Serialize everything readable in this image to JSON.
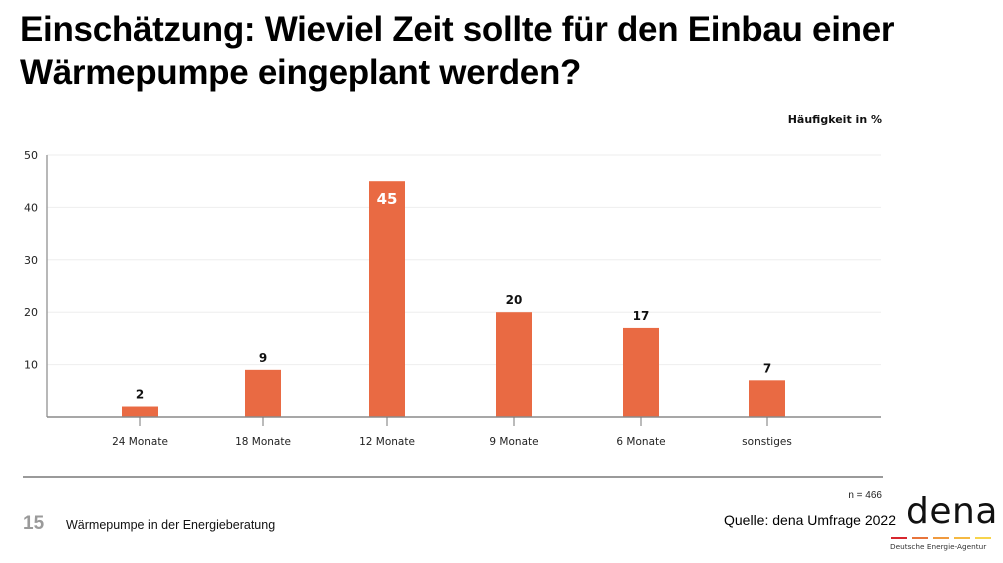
{
  "slide": {
    "title": "Einschätzung: Wieviel Zeit sollte für den Einbau einer Wärmepumpe eingeplant werden?",
    "page_number": "15",
    "footer_text": "Wärmepumpe in der Energieberatung",
    "sample_size": "n = 466",
    "source": "Quelle: dena Umfrage 2022",
    "logo": {
      "word": "dena",
      "subtitle": "Deutsche Energie-Agentur",
      "stripe_colors": [
        "#d7262e",
        "#e8743b",
        "#f09a3e",
        "#f5b942",
        "#f7d44c"
      ]
    }
  },
  "chart_data": {
    "type": "bar",
    "title": "Einschätzung: Wieviel Zeit sollte für den Einbau einer Wärmepumpe eingeplant werden?",
    "xlabel": "",
    "ylabel": "Häufigkeit in %",
    "categories": [
      "24 Monate",
      "18 Monate",
      "12 Monate",
      "9 Monate",
      "6 Monate",
      "sonstiges"
    ],
    "values": [
      2,
      9,
      45,
      20,
      17,
      7
    ],
    "data_labels": [
      "2",
      "9",
      "45",
      "20",
      "17",
      "7"
    ],
    "highlight_index": 2,
    "ylim": [
      0,
      50
    ],
    "yticks": [
      10,
      20,
      30,
      40,
      50
    ],
    "ytick_labels": [
      "10",
      "20",
      "30",
      "40",
      "50"
    ],
    "grid": true,
    "legend": "none",
    "bar_color": "#e96a43"
  }
}
